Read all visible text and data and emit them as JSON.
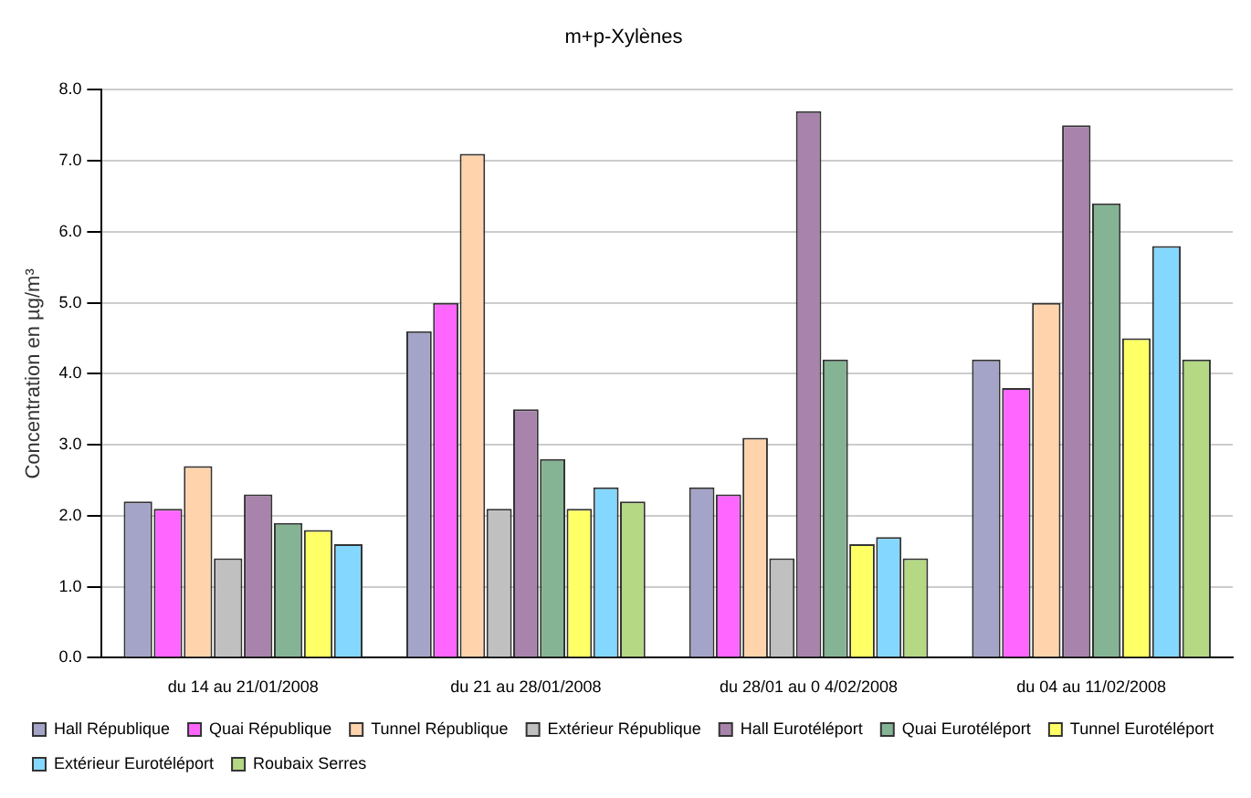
{
  "chart_data": {
    "type": "bar",
    "title": "m+p-Xylènes",
    "ylabel": "Concentration en µg/m³",
    "categories": [
      "du 14 au 21/01/2008",
      "du 21 au 28/01/2008",
      "du 28/01 au 0 4/02/2008",
      "du 04 au 11/02/2008"
    ],
    "series": [
      {
        "name": "Hall République",
        "color": "#a4a4c8",
        "values": [
          2.2,
          4.6,
          2.4,
          4.2
        ]
      },
      {
        "name": "Quai République",
        "color": "#ff66ff",
        "values": [
          2.1,
          5.0,
          2.3,
          3.8
        ]
      },
      {
        "name": "Tunnel République",
        "color": "#ffd4ac",
        "values": [
          2.7,
          7.1,
          3.1,
          5.0
        ]
      },
      {
        "name": "Extérieur République",
        "color": "#c0c0c0",
        "values": [
          1.4,
          2.1,
          1.4,
          null
        ]
      },
      {
        "name": "Hall Eurotéléport",
        "color": "#a884ac",
        "values": [
          2.3,
          3.5,
          7.7,
          7.5
        ]
      },
      {
        "name": "Quai Eurotéléport",
        "color": "#84b494",
        "values": [
          1.9,
          2.8,
          4.2,
          6.4
        ]
      },
      {
        "name": "Tunnel Eurotéléport",
        "color": "#ffff66",
        "values": [
          1.8,
          2.1,
          1.6,
          4.5
        ]
      },
      {
        "name": "Extérieur Eurotéléport",
        "color": "#84d8ff",
        "values": [
          1.6,
          2.4,
          1.7,
          5.8
        ]
      },
      {
        "name": "Roubaix Serres",
        "color": "#b4d884",
        "values": [
          null,
          2.2,
          1.4,
          4.2
        ]
      }
    ],
    "ylim": [
      0,
      8
    ],
    "yticks": [
      {
        "value": 0,
        "label": "0.0"
      },
      {
        "value": 1,
        "label": "1.0"
      },
      {
        "value": 2,
        "label": "2.0"
      },
      {
        "value": 3,
        "label": "3.0"
      },
      {
        "value": 4,
        "label": "4.0"
      },
      {
        "value": 5,
        "label": "5.0"
      },
      {
        "value": 6,
        "label": "6.0"
      },
      {
        "value": 7,
        "label": "7.0"
      },
      {
        "value": 8,
        "label": "8.0"
      }
    ],
    "grid": "y",
    "legend": "bottom"
  }
}
